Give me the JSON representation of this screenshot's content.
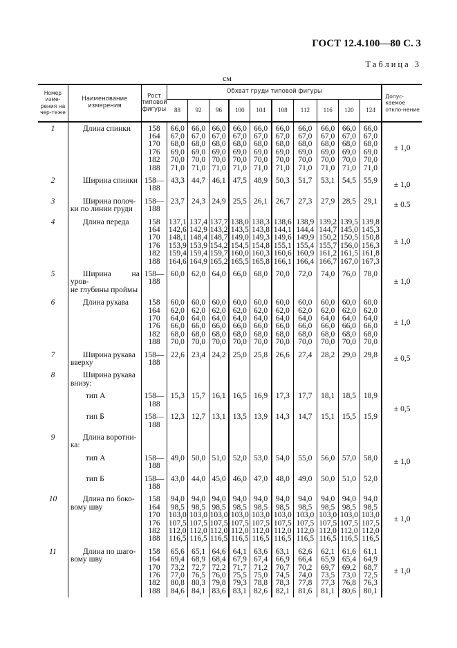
{
  "page_header": "ГОСТ 12.4.100—80 С. 3",
  "table_title": "Таблица 3",
  "unit": "см",
  "columns": {
    "number": "Номер изме-рения на чер-теже",
    "name": "Наименование измерения",
    "height": "Рост типовой фигуры",
    "chest_group": "Обхват груди типовой фигуры",
    "chest_sizes": [
      "88",
      "92",
      "96",
      "100",
      "104",
      "108",
      "112",
      "116",
      "120",
      "124"
    ],
    "tolerance": "Допус-каемое откло-нение"
  },
  "rows": [
    {
      "num": "1",
      "name": "Длина спинки",
      "height": "158\n164\n170\n176\n182\n188",
      "values": [
        "66,0\n67,0\n68,0\n69,0\n70,0\n71,0",
        "66,0\n67,0\n68,0\n69,0\n70,0\n71,0",
        "66,0\n67,0\n68,0\n69,0\n70,0\n71,0",
        "66,0\n67,0\n68,0\n69,0\n70,0\n71,0",
        "66,0\n67,0\n68,0\n69,0\n70,0\n71,0",
        "66,0\n67,0\n68,0\n69,0\n70,0\n71,0",
        "66,0\n67,0\n68,0\n69,0\n70,0\n71,0",
        "66,0\n67,0\n68,0\n69,0\n70,0\n71,0",
        "66,0\n67,0\n68,0\n69,0\n70,0\n71,0",
        "66,0\n67,0\n68,0\n69,0\n70,0\n71,0"
      ],
      "tol": "± 1,0"
    },
    {
      "num": "2",
      "name": "Ширина спинки",
      "height": "158—\n188",
      "values": [
        "43,3",
        "44,7",
        "46,1",
        "47,5",
        "48,9",
        "50,3",
        "51,7",
        "53,1",
        "54,5",
        "55,9"
      ],
      "tol": "± 1,0"
    },
    {
      "num": "3",
      "name": "Ширина полоч-\nки по линии груди",
      "height": "158—\n188",
      "values": [
        "23,7",
        "24,3",
        "24,9",
        "25,5",
        "26,1",
        "26,7",
        "27,3",
        "27,9",
        "28,5",
        "29,1"
      ],
      "tol": "± 0.5"
    },
    {
      "num": "4",
      "name": "Длина переда",
      "height": "158\n164\n170\n176\n182\n188",
      "values": [
        "137,1\n142,6\n148,1\n153,9\n159,4\n164,6",
        "137,4\n142,9\n148,4\n153,9\n159,4\n164,9",
        "137,7\n143,2\n148,7\n154,2\n159,7\n165,2",
        "138,0\n143,5\n149,0\n154,5\n160,0\n165,5",
        "138,3\n143,8\n149,3\n154,8\n160,3\n165,8",
        "138,6\n144,1\n149,6\n155,1\n160,6\n166,1",
        "138,9\n144,4\n149,9\n155,4\n160,9\n166,4",
        "139,2\n144,7\n150,2\n155,7\n161,2\n166,7",
        "139,5\n145,0\n150,5\n156,0\n161,5\n167,0",
        "139,8\n145,3\n150,8\n156,3\n161,8\n167,3"
      ],
      "tol": "± 1,0"
    },
    {
      "num": "5",
      "name": "Ширина на уров-\nне глубины проймы",
      "height": "158—\n188",
      "values": [
        "60,0",
        "62,0",
        "64,0",
        "66,0",
        "68,0",
        "70,0",
        "72,0",
        "74,0",
        "76,0",
        "78,0"
      ],
      "tol": "± 1,0"
    },
    {
      "num": "6",
      "name": "Длина рукава",
      "height": "158\n164\n170\n176\n182\n188",
      "values": [
        "60,0\n62,0\n64,0\n66,0\n68,0\n70,0",
        "60,0\n62,0\n64,0\n66,0\n68,0\n70,0",
        "60,0\n62,0\n64,0\n66,0\n68,0\n70,0",
        "60,0\n62,0\n64,0\n66,0\n68,0\n70,0",
        "60,0\n62,0\n64,0\n66,0\n68,0\n70,0",
        "60,0\n62,0\n64,0\n66,0\n68,0\n70,0",
        "60,0\n62,0\n64,0\n66,0\n68,0\n70,0",
        "60,0\n62,0\n64,0\n66,0\n68,0\n70,0",
        "60,0\n62,0\n64,0\n66,0\n68,0\n70,0",
        "60,0\n62,0\n64,0\n66,0\n68,0\n70,0"
      ],
      "tol": "± 1,0"
    },
    {
      "num": "7",
      "name": "Ширина рукава\nвверху",
      "height": "158—\n188",
      "values": [
        "22,6",
        "23,4",
        "24,2",
        "25,0",
        "25,8",
        "26,6",
        "27,4",
        "28,2",
        "29,0",
        "29,8"
      ],
      "tol": "± 0,5"
    },
    {
      "num": "8",
      "name": "Ширина рукава\nвнизу:",
      "height": "",
      "values": [
        "",
        "",
        "",
        "",
        "",
        "",
        "",
        "",
        "",
        ""
      ],
      "tol_span_start": true,
      "tol": "± 0,5",
      "tol_rows": 3
    },
    {
      "sub": true,
      "name": "тип А",
      "height": "158—\n188",
      "values": [
        "15,3",
        "15,7",
        "16,1",
        "16,5",
        "16,9",
        "17,3",
        "17,7",
        "18,1",
        "18,5",
        "18,9"
      ],
      "tol_covered": true
    },
    {
      "sub": true,
      "name": "тип Б",
      "height": "158—\n188",
      "values": [
        "12,3",
        "12,7",
        "13,1",
        "13,5",
        "13,9",
        "14,3",
        "14,7",
        "15,1",
        "15,5",
        "15,9"
      ],
      "tol_covered": true
    },
    {
      "num": "9",
      "name": "Длина воротни-\nка:",
      "height": "",
      "values": [
        "",
        "",
        "",
        "",
        "",
        "",
        "",
        "",
        "",
        ""
      ],
      "tol": ""
    },
    {
      "sub": true,
      "name": "тип А",
      "height": "158—\n188",
      "values": [
        "49,0",
        "50,0",
        "51,0",
        "52,0",
        "53,0",
        "54,0",
        "55,0",
        "56,0",
        "57,0",
        "58,0"
      ],
      "tol": "± 1,0"
    },
    {
      "sub": true,
      "name": "тип Б",
      "height": "158—\n188",
      "values": [
        "43,0",
        "44,0",
        "45,0",
        "46,0",
        "47,0",
        "48,0",
        "49,0",
        "50,0",
        "51,0",
        "52,0"
      ],
      "tol": ""
    },
    {
      "num": "10",
      "name": "Длина по боко-\nвому шву",
      "height": "158\n164\n170\n176\n182\n188",
      "values": [
        "94,0\n98,5\n103,0\n107,5\n112,0\n116,5",
        "94,0\n98,5\n103,0\n107,5\n112,0\n116,5",
        "94,0\n98,5\n103,0\n107,5\n112,0\n116,5",
        "94,0\n98,5\n103,0\n107,5\n112,0\n116,5",
        "94,0\n98,5\n103,0\n107,5\n112,0\n116,5",
        "94,0\n98,5\n103,0\n107,5\n112,0\n116,5",
        "94,0\n98,5\n103,0\n107,5\n112,0\n116,5",
        "94,0\n98,5\n103,0\n107,5\n112,0\n116,5",
        "94,0\n98,5\n103,0\n107,5\n112,0\n116,5",
        "94,0\n98,5\n103,0\n107,5\n112,0\n116,5"
      ],
      "tol": "± 1,0"
    },
    {
      "num": "11",
      "name": "Длина по шаго-\nвому шву",
      "height": "158\n164\n170\n176\n182\n188",
      "values": [
        "65,6\n69,4\n73,2\n77,0\n80,8\n84,6",
        "65,1\n68,9\n72,7\n76,5\n80,3\n84,1",
        "64,6\n68,4\n72,2\n76,0\n79,8\n83,6",
        "64,1\n67,9\n71,7\n75,5\n79,3\n83,1",
        "63,6\n67,4\n71,2\n75,0\n78,8\n82,6",
        "63,1\n66,9\n70,7\n74,5\n78,3\n82,1",
        "62,6\n66,4\n70,2\n74,0\n77,8\n81,6",
        "62,1\n65,9\n69,7\n73,5\n77,3\n81,1",
        "61,6\n65,4\n69,2\n73,0\n76,8\n80,6",
        "61,1\n64,9\n68,7\n72,5\n76,3\n80,1"
      ],
      "tol": "± 1,0"
    }
  ]
}
